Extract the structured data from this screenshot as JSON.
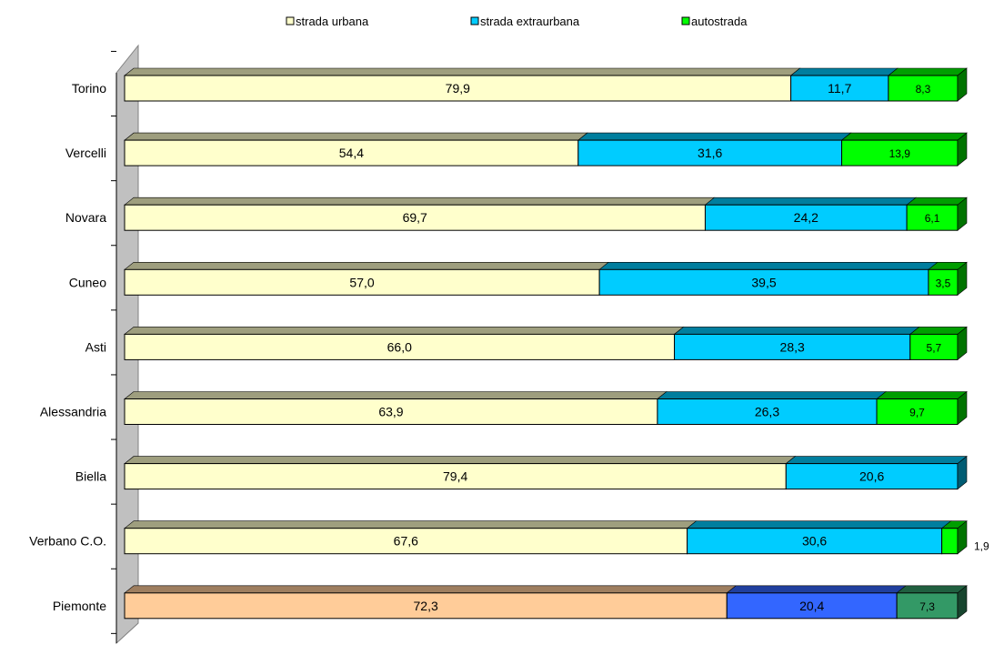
{
  "chart_data": {
    "type": "bar",
    "orientation": "horizontal",
    "stacked": "percent",
    "style": "3d",
    "categories": [
      "Torino",
      "Vercelli",
      "Novara",
      "Cuneo",
      "Asti",
      "Alessandria",
      "Biella",
      "Verbano C.O.",
      "Piemonte"
    ],
    "series": [
      {
        "name": "strada urbana",
        "color": "#FFFFCC",
        "highlight_color": "#FFCC99",
        "values": [
          79.9,
          54.4,
          69.7,
          57.0,
          66.0,
          63.9,
          79.4,
          67.6,
          72.3
        ],
        "labels": [
          "79,9",
          "54,4",
          "69,7",
          "57,0",
          "66,0",
          "63,9",
          "79,4",
          "67,6",
          "72,3"
        ]
      },
      {
        "name": "strada extraurbana",
        "color": "#00CCFF",
        "highlight_color": "#3366FF",
        "values": [
          11.7,
          31.6,
          24.2,
          39.5,
          28.3,
          26.3,
          20.6,
          30.6,
          20.4
        ],
        "labels": [
          "11,7",
          "31,6",
          "24,2",
          "39,5",
          "28,3",
          "26,3",
          "20,6",
          "30,6",
          "20,4"
        ]
      },
      {
        "name": "autostrada",
        "color": "#00FF00",
        "highlight_color": "#339966",
        "values": [
          8.3,
          13.9,
          6.1,
          3.5,
          5.7,
          9.7,
          0.0,
          1.9,
          7.3
        ],
        "labels": [
          "8,3",
          "13,9",
          "6,1",
          "3,5",
          "5,7",
          "9,7",
          "",
          "1,9",
          "7,3"
        ]
      }
    ],
    "highlight_category": "Piemonte",
    "legend_position": "top",
    "xlim": [
      0,
      100
    ],
    "grid": false,
    "title": "",
    "xlabel": "",
    "ylabel": ""
  }
}
